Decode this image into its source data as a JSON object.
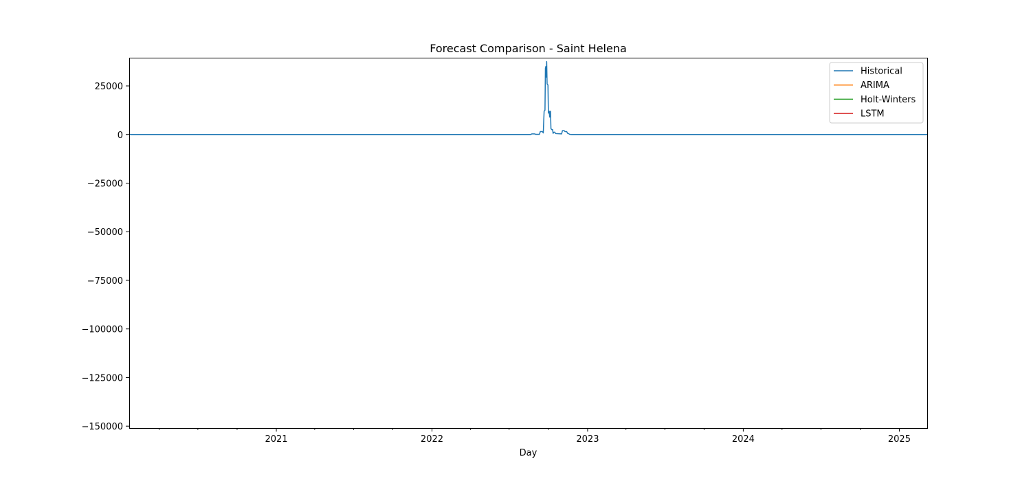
{
  "chart_data": {
    "type": "line",
    "title": "Forecast Comparison - Saint Helena",
    "xlabel": "Day",
    "ylabel": "",
    "x_type": "date",
    "xlim": [
      "2020-01-22",
      "2025-03-09"
    ],
    "ylim": [
      -151000,
      39500
    ],
    "x_ticks": [
      {
        "date": "2021-01-01",
        "label": "2021"
      },
      {
        "date": "2022-01-01",
        "label": "2022"
      },
      {
        "date": "2023-01-01",
        "label": "2023"
      },
      {
        "date": "2024-01-01",
        "label": "2024"
      },
      {
        "date": "2025-01-01",
        "label": "2025"
      }
    ],
    "x_minor_ticks": [
      "2020-04-01",
      "2020-07-01",
      "2020-10-01",
      "2021-04-01",
      "2021-07-01",
      "2021-10-01",
      "2022-04-01",
      "2022-07-01",
      "2022-10-01",
      "2023-04-01",
      "2023-07-01",
      "2023-10-01",
      "2024-04-01",
      "2024-07-01",
      "2024-10-01"
    ],
    "y_ticks": [
      {
        "value": 25000,
        "label": "25000"
      },
      {
        "value": 0,
        "label": "0"
      },
      {
        "value": -25000,
        "label": "−25000"
      },
      {
        "value": -50000,
        "label": "−50000"
      },
      {
        "value": -75000,
        "label": "−75000"
      },
      {
        "value": -100000,
        "label": "−100000"
      },
      {
        "value": -125000,
        "label": "−125000"
      },
      {
        "value": -150000,
        "label": "−150000"
      }
    ],
    "grid": false,
    "legend_position": "top-right",
    "series": [
      {
        "name": "Historical",
        "color": "#1f77b4",
        "points": [
          [
            "2020-01-22",
            0
          ],
          [
            "2022-08-20",
            0
          ],
          [
            "2022-08-23",
            300
          ],
          [
            "2022-08-30",
            300
          ],
          [
            "2022-09-01",
            100
          ],
          [
            "2022-09-10",
            100
          ],
          [
            "2022-09-12",
            1500
          ],
          [
            "2022-09-17",
            1500
          ],
          [
            "2022-09-19",
            800
          ],
          [
            "2022-09-21",
            12000
          ],
          [
            "2022-09-23",
            12500
          ],
          [
            "2022-09-24",
            34000
          ],
          [
            "2022-09-25",
            35000
          ],
          [
            "2022-09-26",
            29500
          ],
          [
            "2022-09-27",
            37500
          ],
          [
            "2022-09-28",
            26000
          ],
          [
            "2022-09-30",
            25500
          ],
          [
            "2022-10-01",
            11000
          ],
          [
            "2022-10-03",
            12000
          ],
          [
            "2022-10-04",
            9000
          ],
          [
            "2022-10-05",
            11500
          ],
          [
            "2022-10-06",
            12000
          ],
          [
            "2022-10-07",
            3000
          ],
          [
            "2022-10-09",
            2500
          ],
          [
            "2022-10-11",
            2500
          ],
          [
            "2022-10-12",
            600
          ],
          [
            "2022-10-14",
            1200
          ],
          [
            "2022-10-16",
            1200
          ],
          [
            "2022-10-18",
            500
          ],
          [
            "2022-10-25",
            400
          ],
          [
            "2022-11-01",
            300
          ],
          [
            "2022-11-03",
            2000
          ],
          [
            "2022-11-07",
            2000
          ],
          [
            "2022-11-09",
            1500
          ],
          [
            "2022-11-13",
            1500
          ],
          [
            "2022-11-15",
            600
          ],
          [
            "2022-11-17",
            500
          ],
          [
            "2022-11-20",
            100
          ],
          [
            "2022-11-25",
            0
          ],
          [
            "2025-03-09",
            0
          ]
        ]
      },
      {
        "name": "ARIMA",
        "color": "#ff7f0e",
        "points": []
      },
      {
        "name": "Holt-Winters",
        "color": "#2ca02c",
        "points": []
      },
      {
        "name": "LSTM",
        "color": "#d62728",
        "points": []
      }
    ]
  }
}
